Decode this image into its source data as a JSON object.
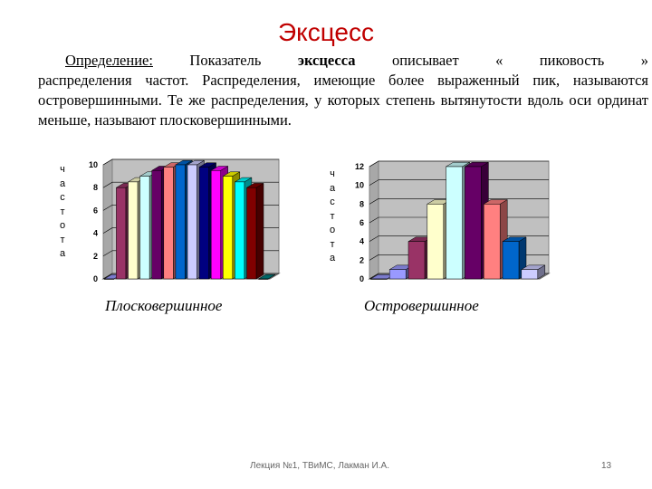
{
  "slide": {
    "title": "Эксцесс",
    "definition_label": "Определение:",
    "text_part1": "Показатель",
    "text_bold": "эксцесса",
    "text_part2": "описывает « пиковость »",
    "text_line2": "распределения частот. Распределения, имеющие более выраженный пик, называются островершинными. Те же распределения, у которых степень вытянутости вдоль оси ординат меньше, называют плосковершинными.",
    "caption_left": "Плосковершинное",
    "caption_right": "Островершинное",
    "footer_text": "Лекция №1, ТВиМС, Лакман И.А.",
    "page_number": "13"
  },
  "chart_data": [
    {
      "type": "bar",
      "ylabel": "частота",
      "ylim": [
        0,
        10
      ],
      "yticks": [
        "0",
        "2",
        "4",
        "6",
        "8",
        "10"
      ],
      "values": [
        0,
        8,
        8.5,
        9,
        9.5,
        9.8,
        10,
        10,
        9.8,
        9.5,
        9,
        8.5,
        8,
        0
      ],
      "colors": [
        "#9999ff",
        "#993366",
        "#ffffcc",
        "#ccffff",
        "#660066",
        "#ff8080",
        "#0066cc",
        "#ccccff",
        "#000080",
        "#ff00ff",
        "#ffff00",
        "#00ffff",
        "#800000",
        "#008080"
      ]
    },
    {
      "type": "bar",
      "ylabel": "частота",
      "ylim": [
        0,
        12
      ],
      "yticks": [
        "0",
        "2",
        "4",
        "6",
        "8",
        "10",
        "12"
      ],
      "values": [
        0,
        1,
        4,
        8,
        12,
        12,
        8,
        4,
        1
      ],
      "colors": [
        "#9999ff",
        "#9999ff",
        "#993366",
        "#ffffcc",
        "#ccffff",
        "#660066",
        "#ff8080",
        "#0066cc",
        "#ccccff"
      ]
    }
  ]
}
